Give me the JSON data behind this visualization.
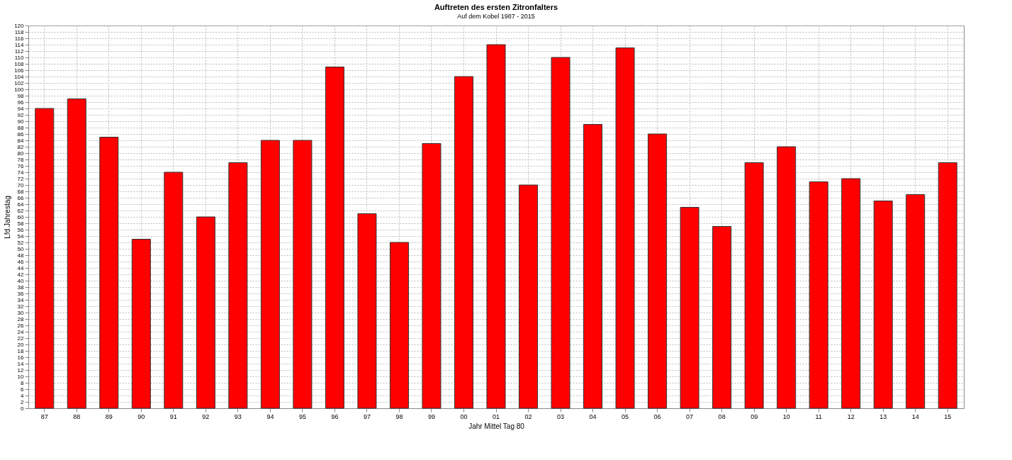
{
  "chart_data": {
    "type": "bar",
    "title": "Auftreten des ersten Zitronfalters",
    "subtitle": "Auf dem Kobel 1987 - 2015",
    "xlabel": "Jahr Mittel Tag 80",
    "ylabel": "Lfd.Jahrestag",
    "categories": [
      "87",
      "88",
      "89",
      "90",
      "91",
      "92",
      "93",
      "94",
      "95",
      "96",
      "97",
      "98",
      "99",
      "00",
      "01",
      "02",
      "03",
      "04",
      "05",
      "06",
      "07",
      "08",
      "09",
      "10",
      "11",
      "12",
      "13",
      "14",
      "15"
    ],
    "values": [
      94,
      97,
      85,
      53,
      74,
      60,
      77,
      84,
      84,
      107,
      61,
      52,
      83,
      104,
      114,
      70,
      110,
      89,
      113,
      86,
      63,
      57,
      77,
      82,
      71,
      72,
      65,
      67,
      77
    ],
    "color": "#ff0000",
    "ylim": [
      0,
      120
    ],
    "yticks": [
      0,
      2,
      4,
      6,
      8,
      10,
      12,
      14,
      16,
      18,
      20,
      22,
      24,
      26,
      28,
      30,
      32,
      34,
      36,
      38,
      40,
      42,
      44,
      46,
      48,
      50,
      52,
      54,
      56,
      58,
      60,
      62,
      64,
      66,
      68,
      70,
      72,
      74,
      76,
      78,
      80,
      82,
      84,
      86,
      88,
      90,
      92,
      94,
      96,
      98,
      100,
      102,
      104,
      106,
      108,
      110,
      112,
      114,
      116,
      118,
      120
    ],
    "grid": true
  }
}
